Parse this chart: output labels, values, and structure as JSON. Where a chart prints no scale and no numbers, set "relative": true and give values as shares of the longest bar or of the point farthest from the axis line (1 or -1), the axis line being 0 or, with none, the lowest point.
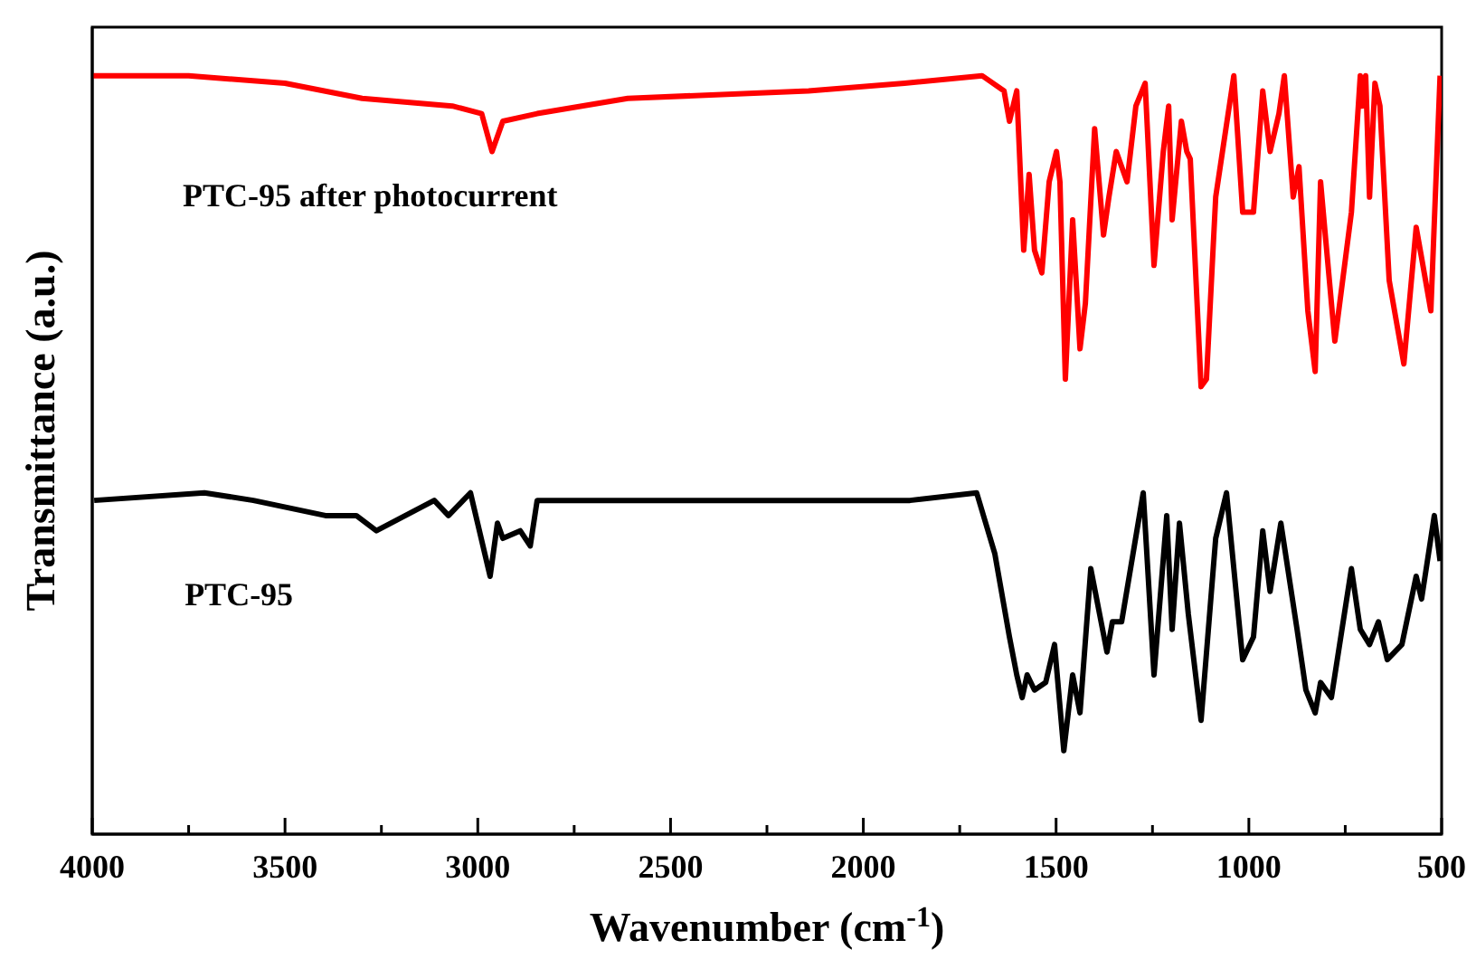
{
  "chart_data": {
    "type": "line",
    "relative": true,
    "xlabel": "Wavenumber (cm$^{-1}$)",
    "ylabel": "Transmittance (a.u.)",
    "xlim": [
      4000,
      500
    ],
    "xticks": [
      4000,
      {
        "value": 3750,
        "label": null
      },
      3500,
      {
        "value": 3250,
        "label": null
      },
      3000,
      {
        "value": 2750,
        "label": null
      },
      2500,
      {
        "value": 2250,
        "label": null
      },
      2000,
      {
        "value": 1750,
        "label": null
      },
      1500,
      {
        "value": 1250,
        "label": null
      },
      1000,
      {
        "value": 750,
        "label": null
      },
      500
    ],
    "marker": "none",
    "line_style": "solid",
    "series": [
      {
        "name": "PTC-95 after photocurrent",
        "color": "#ff0000",
        "x": [
          4000,
          3750,
          3500,
          3300,
          3066,
          2990,
          2963,
          2935,
          2846,
          2611,
          2142,
          1893,
          1692,
          1635,
          1621,
          1602,
          1584,
          1570,
          1556,
          1537,
          1518,
          1499,
          1490,
          1476,
          1457,
          1438,
          1424,
          1400,
          1377,
          1363,
          1344,
          1316,
          1293,
          1269,
          1246,
          1222,
          1208,
          1199,
          1175,
          1161,
          1152,
          1124,
          1110,
          1086,
          1039,
          1016,
          988,
          964,
          945,
          922,
          908,
          885,
          870,
          847,
          828,
          814,
          800,
          777,
          734,
          711,
          706,
          697,
          687,
          673,
          660,
          636,
          598,
          566,
          552,
          528,
          504
        ],
        "values": [
          1.0,
          1.0,
          0.99,
          0.97,
          0.96,
          0.95,
          0.9,
          0.94,
          0.95,
          0.97,
          0.98,
          0.99,
          1.0,
          0.98,
          0.94,
          0.98,
          0.77,
          0.87,
          0.77,
          0.74,
          0.86,
          0.9,
          0.86,
          0.6,
          0.81,
          0.64,
          0.7,
          0.93,
          0.79,
          0.84,
          0.9,
          0.86,
          0.96,
          0.99,
          0.75,
          0.9,
          0.96,
          0.81,
          0.94,
          0.9,
          0.89,
          0.59,
          0.6,
          0.84,
          1.0,
          0.82,
          0.82,
          0.98,
          0.9,
          0.95,
          1.0,
          0.84,
          0.88,
          0.69,
          0.61,
          0.86,
          0.78,
          0.65,
          0.82,
          1.0,
          0.96,
          1.0,
          0.84,
          0.99,
          0.96,
          0.73,
          0.62,
          0.8,
          0.76,
          0.69,
          1.0
        ]
      },
      {
        "name": "PTC-95",
        "color": "#000000",
        "x": [
          3995,
          3709,
          3582,
          3395,
          3315,
          3263,
          3113,
          3076,
          3019,
          2968,
          2949,
          2935,
          2890,
          2864,
          2846,
          2611,
          1879,
          1706,
          1659,
          1621,
          1602,
          1588,
          1575,
          1556,
          1527,
          1504,
          1480,
          1457,
          1438,
          1410,
          1368,
          1354,
          1330,
          1274,
          1246,
          1213,
          1199,
          1180,
          1157,
          1124,
          1086,
          1058,
          1016,
          988,
          964,
          945,
          917,
          875,
          852,
          828,
          814,
          786,
          734,
          711,
          687,
          664,
          641,
          603,
          566,
          552,
          519,
          504
        ],
        "values": [
          0.44,
          0.45,
          0.44,
          0.42,
          0.42,
          0.4,
          0.44,
          0.42,
          0.45,
          0.34,
          0.41,
          0.39,
          0.4,
          0.38,
          0.44,
          0.44,
          0.44,
          0.45,
          0.37,
          0.26,
          0.21,
          0.18,
          0.21,
          0.19,
          0.2,
          0.25,
          0.11,
          0.21,
          0.16,
          0.35,
          0.24,
          0.28,
          0.28,
          0.45,
          0.21,
          0.42,
          0.27,
          0.41,
          0.29,
          0.15,
          0.39,
          0.45,
          0.23,
          0.26,
          0.4,
          0.32,
          0.41,
          0.27,
          0.19,
          0.16,
          0.2,
          0.18,
          0.35,
          0.27,
          0.25,
          0.28,
          0.23,
          0.25,
          0.34,
          0.31,
          0.42,
          0.36
        ]
      }
    ]
  }
}
